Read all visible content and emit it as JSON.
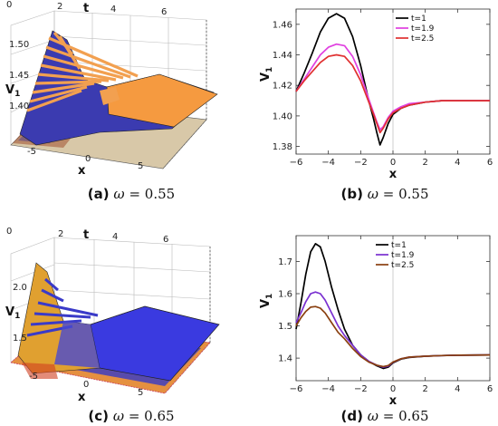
{
  "captions": [
    {
      "label": "(a)",
      "omega": "ω",
      "value": "= 0.55"
    },
    {
      "label": "(b)",
      "omega": "ω",
      "value": "= 0.55"
    },
    {
      "label": "(c)",
      "omega": "ω",
      "value": "= 0.65"
    },
    {
      "label": "(d)",
      "omega": "ω",
      "value": "= 0.65"
    }
  ],
  "chart_data": [
    {
      "id": "a",
      "type": "surface3d",
      "xlabel": "x",
      "ylabel": "t",
      "zlabel": "V",
      "zlabel_sub": "1",
      "x_ticks": [
        "-5",
        "0",
        "5"
      ],
      "t_ticks": [
        "0",
        "2",
        "4",
        "6"
      ],
      "z_ticks": [
        "1.40",
        "1.45",
        "1.50"
      ],
      "colors": {
        "stripe_a": "#3b3bb0",
        "stripe_b": "#f2a050",
        "plane": "#f59a40"
      }
    },
    {
      "id": "b",
      "type": "line",
      "xlabel": "x",
      "ylabel": "V",
      "ylabel_sub": "1",
      "xlim": [
        -6,
        6
      ],
      "ylim": [
        1.375,
        1.47
      ],
      "x_ticks": [
        -6,
        -4,
        -2,
        0,
        2,
        4,
        6
      ],
      "y_ticks": [
        1.38,
        1.4,
        1.42,
        1.44,
        1.46
      ],
      "y_tick_labels": [
        "1.38",
        "1.40",
        "1.42",
        "1.44",
        "1.46"
      ],
      "legend_position": "top-right",
      "series": [
        {
          "name": "t=1",
          "color": "#000000",
          "points": [
            [
              -6,
              1.416
            ],
            [
              -5.5,
              1.428
            ],
            [
              -5,
              1.441
            ],
            [
              -4.5,
              1.455
            ],
            [
              -4,
              1.464
            ],
            [
              -3.5,
              1.467
            ],
            [
              -3,
              1.464
            ],
            [
              -2.5,
              1.452
            ],
            [
              -2,
              1.433
            ],
            [
              -1.5,
              1.41
            ],
            [
              -1.2,
              1.398
            ],
            [
              -1,
              1.389
            ],
            [
              -0.8,
              1.381
            ],
            [
              -0.6,
              1.386
            ],
            [
              -0.3,
              1.395
            ],
            [
              0,
              1.401
            ],
            [
              0.5,
              1.405
            ],
            [
              1,
              1.407
            ],
            [
              2,
              1.409
            ],
            [
              3,
              1.41
            ],
            [
              4,
              1.41
            ],
            [
              5,
              1.41
            ],
            [
              6,
              1.41
            ]
          ]
        },
        {
          "name": "t=1.9",
          "color": "#e040e0",
          "points": [
            [
              -6,
              1.416
            ],
            [
              -5.5,
              1.424
            ],
            [
              -5,
              1.432
            ],
            [
              -4.5,
              1.44
            ],
            [
              -4,
              1.445
            ],
            [
              -3.5,
              1.447
            ],
            [
              -3,
              1.446
            ],
            [
              -2.5,
              1.439
            ],
            [
              -2,
              1.427
            ],
            [
              -1.5,
              1.411
            ],
            [
              -1.2,
              1.402
            ],
            [
              -1,
              1.396
            ],
            [
              -0.8,
              1.391
            ],
            [
              -0.6,
              1.393
            ],
            [
              -0.3,
              1.399
            ],
            [
              0,
              1.403
            ],
            [
              0.5,
              1.406
            ],
            [
              1,
              1.408
            ],
            [
              2,
              1.409
            ],
            [
              3,
              1.41
            ],
            [
              4,
              1.41
            ],
            [
              5,
              1.41
            ],
            [
              6,
              1.41
            ]
          ]
        },
        {
          "name": "t=2.5",
          "color": "#e03030",
          "points": [
            [
              -6,
              1.416
            ],
            [
              -5.5,
              1.423
            ],
            [
              -5,
              1.429
            ],
            [
              -4.5,
              1.435
            ],
            [
              -4,
              1.439
            ],
            [
              -3.5,
              1.44
            ],
            [
              -3,
              1.439
            ],
            [
              -2.5,
              1.433
            ],
            [
              -2,
              1.423
            ],
            [
              -1.5,
              1.409
            ],
            [
              -1.2,
              1.401
            ],
            [
              -1,
              1.395
            ],
            [
              -0.8,
              1.389
            ],
            [
              -0.6,
              1.392
            ],
            [
              -0.3,
              1.398
            ],
            [
              0,
              1.402
            ],
            [
              0.5,
              1.405
            ],
            [
              1,
              1.407
            ],
            [
              2,
              1.409
            ],
            [
              3,
              1.41
            ],
            [
              4,
              1.41
            ],
            [
              5,
              1.41
            ],
            [
              6,
              1.41
            ]
          ]
        }
      ]
    },
    {
      "id": "c",
      "type": "surface3d",
      "xlabel": "x",
      "ylabel": "t",
      "zlabel": "V",
      "zlabel_sub": "1",
      "x_ticks": [
        "-5",
        "0",
        "5"
      ],
      "t_ticks": [
        "0",
        "2",
        "4",
        "6"
      ],
      "z_ticks": [
        "1.5",
        "2.0"
      ],
      "colors": {
        "stripe_a": "#e0a030",
        "stripe_b": "#3a3ac8",
        "plane": "#3a3ae0"
      }
    },
    {
      "id": "d",
      "type": "line",
      "xlabel": "x",
      "ylabel": "V",
      "ylabel_sub": "1",
      "xlim": [
        -6,
        6
      ],
      "ylim": [
        1.33,
        1.78
      ],
      "x_ticks": [
        -6,
        -4,
        -2,
        0,
        2,
        4,
        6
      ],
      "y_ticks": [
        1.4,
        1.5,
        1.6,
        1.7
      ],
      "y_tick_labels": [
        "1.4",
        "1.5",
        "1.6",
        "1.7"
      ],
      "legend_position": "top-center",
      "series": [
        {
          "name": "t=1",
          "color": "#000000",
          "points": [
            [
              -6,
              1.49
            ],
            [
              -5.7,
              1.57
            ],
            [
              -5.4,
              1.66
            ],
            [
              -5.1,
              1.73
            ],
            [
              -4.8,
              1.755
            ],
            [
              -4.5,
              1.745
            ],
            [
              -4.2,
              1.7
            ],
            [
              -3.8,
              1.62
            ],
            [
              -3.4,
              1.55
            ],
            [
              -3,
              1.49
            ],
            [
              -2.5,
              1.44
            ],
            [
              -2,
              1.41
            ],
            [
              -1.5,
              1.39
            ],
            [
              -1,
              1.376
            ],
            [
              -0.6,
              1.368
            ],
            [
              -0.3,
              1.372
            ],
            [
              0,
              1.385
            ],
            [
              0.5,
              1.397
            ],
            [
              1,
              1.402
            ],
            [
              2,
              1.406
            ],
            [
              3,
              1.408
            ],
            [
              4,
              1.409
            ],
            [
              6,
              1.41
            ]
          ]
        },
        {
          "name": "t=1.9",
          "color": "#7a30d0",
          "points": [
            [
              -6,
              1.51
            ],
            [
              -5.7,
              1.54
            ],
            [
              -5.4,
              1.575
            ],
            [
              -5.1,
              1.6
            ],
            [
              -4.8,
              1.605
            ],
            [
              -4.5,
              1.6
            ],
            [
              -4.2,
              1.58
            ],
            [
              -3.8,
              1.54
            ],
            [
              -3.4,
              1.5
            ],
            [
              -3,
              1.47
            ],
            [
              -2.5,
              1.44
            ],
            [
              -2,
              1.41
            ],
            [
              -1.5,
              1.39
            ],
            [
              -1,
              1.378
            ],
            [
              -0.6,
              1.372
            ],
            [
              -0.3,
              1.375
            ],
            [
              0,
              1.387
            ],
            [
              0.5,
              1.398
            ],
            [
              1,
              1.403
            ],
            [
              2,
              1.406
            ],
            [
              3,
              1.408
            ],
            [
              4,
              1.409
            ],
            [
              6,
              1.41
            ]
          ]
        },
        {
          "name": "t=2.5",
          "color": "#8a4010",
          "points": [
            [
              -6,
              1.5
            ],
            [
              -5.7,
              1.525
            ],
            [
              -5.4,
              1.545
            ],
            [
              -5.1,
              1.558
            ],
            [
              -4.8,
              1.56
            ],
            [
              -4.5,
              1.555
            ],
            [
              -4.2,
              1.54
            ],
            [
              -3.8,
              1.51
            ],
            [
              -3.4,
              1.48
            ],
            [
              -3,
              1.46
            ],
            [
              -2.5,
              1.43
            ],
            [
              -2,
              1.405
            ],
            [
              -1.5,
              1.388
            ],
            [
              -1,
              1.378
            ],
            [
              -0.6,
              1.374
            ],
            [
              -0.3,
              1.377
            ],
            [
              0,
              1.388
            ],
            [
              0.5,
              1.398
            ],
            [
              1,
              1.403
            ],
            [
              2,
              1.406
            ],
            [
              3,
              1.408
            ],
            [
              4,
              1.409
            ],
            [
              6,
              1.41
            ]
          ]
        }
      ]
    }
  ]
}
